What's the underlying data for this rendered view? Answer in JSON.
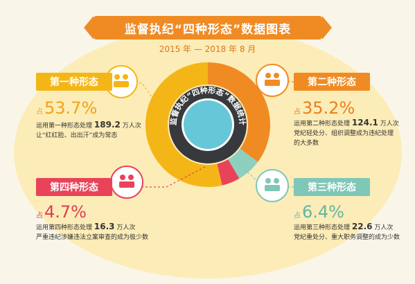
{
  "header": {
    "title": "监督执纪“四种形态”数据图表",
    "subtitle": "2015 年 — 2018 年 8 月"
  },
  "center_label": "监督执纪“四种形态”数据统计",
  "colors": {
    "form1": "#f4b617",
    "form2": "#f08b24",
    "form3": "#8ecfc0",
    "form4": "#e8435a",
    "ring_dark": "#37393d",
    "center": "#66c7d8"
  },
  "forms": [
    {
      "label": "第一种形态",
      "percent": "53.7%",
      "prefix": "占",
      "line1_pre": "运用第一种形态处理",
      "count": "189.2",
      "line1_post": "万人次",
      "line2": "让“红红脸、出出汗”成为常态",
      "line3": "",
      "icon": "meeting-icon"
    },
    {
      "label": "第二种形态",
      "percent": "35.2%",
      "prefix": "占",
      "line1_pre": "运用第二种形态处理",
      "count": "124.1",
      "line1_post": "万人次",
      "line2": "党纪轻处分、组织调整成为违纪处理",
      "line3": "的大多数",
      "icon": "document-search-icon"
    },
    {
      "label": "第三种形态",
      "percent": "6.4%",
      "prefix": "占",
      "line1_pre": "运用第三种形态处理",
      "count": "22.6",
      "line1_post": "万人次",
      "line2": "党纪重处分、重大职务调整的成为少数",
      "line3": "",
      "icon": "people-cycle-icon"
    },
    {
      "label": "第四种形态",
      "percent": "4.7%",
      "prefix": "占",
      "line1_pre": "运用第四种形态处理",
      "count": "16.3",
      "line1_post": "万人次",
      "line2": "严重违纪涉嫌违法立案审查的成为极少数",
      "line3": "",
      "icon": "tribunal-icon"
    }
  ],
  "chart_data": {
    "type": "pie",
    "style": "donut",
    "categories": [
      "第一种形态",
      "第二种形态",
      "第三种形态",
      "第四种形态"
    ],
    "values": [
      53.7,
      35.2,
      6.4,
      4.7
    ],
    "counts": [
      189.2,
      124.1,
      22.6,
      16.3
    ],
    "unit": "%"
  }
}
